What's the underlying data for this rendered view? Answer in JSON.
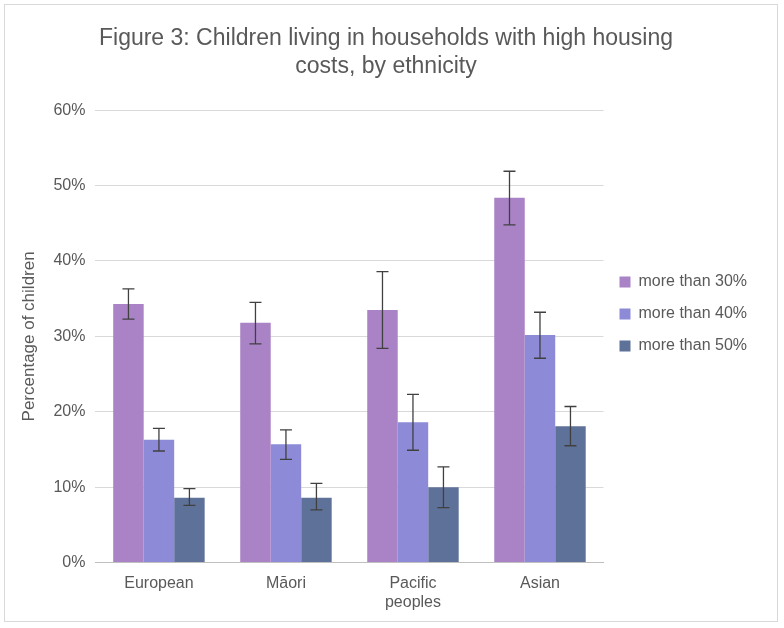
{
  "chart_data": {
    "type": "bar",
    "title": "Figure 3: Children living in households with high housing costs, by ethnicity",
    "y_label": "Percentage of children",
    "categories": [
      "European",
      "Māori",
      "Pacific peoples",
      "Asian"
    ],
    "series": [
      {
        "name": "more than 30%",
        "color": "#a983c6",
        "values": [
          34.3,
          31.8,
          33.5,
          48.4
        ],
        "error_low": [
          32.3,
          29.0,
          28.4,
          44.8
        ],
        "error_high": [
          36.3,
          34.5,
          38.6,
          51.9
        ]
      },
      {
        "name": "more than 40%",
        "color": "#8d8ad8",
        "values": [
          16.3,
          15.7,
          18.6,
          30.2
        ],
        "error_low": [
          14.8,
          13.7,
          14.9,
          27.1
        ],
        "error_high": [
          17.8,
          17.6,
          22.3,
          33.2
        ]
      },
      {
        "name": "more than 50%",
        "color": "#5e7199",
        "values": [
          8.6,
          8.6,
          10.0,
          18.1
        ],
        "error_low": [
          7.6,
          7.0,
          7.3,
          15.5
        ],
        "error_high": [
          9.8,
          10.5,
          12.7,
          20.7
        ]
      }
    ],
    "ylim": [
      0,
      60
    ],
    "yticks": [
      {
        "value": 0,
        "label": "0%"
      },
      {
        "value": 10,
        "label": "10%"
      },
      {
        "value": 20,
        "label": "20%"
      },
      {
        "value": 30,
        "label": "30%"
      },
      {
        "value": 40,
        "label": "40%"
      },
      {
        "value": 50,
        "label": "50%"
      },
      {
        "value": 60,
        "label": "60%"
      }
    ],
    "grid": true,
    "legend": "right"
  }
}
